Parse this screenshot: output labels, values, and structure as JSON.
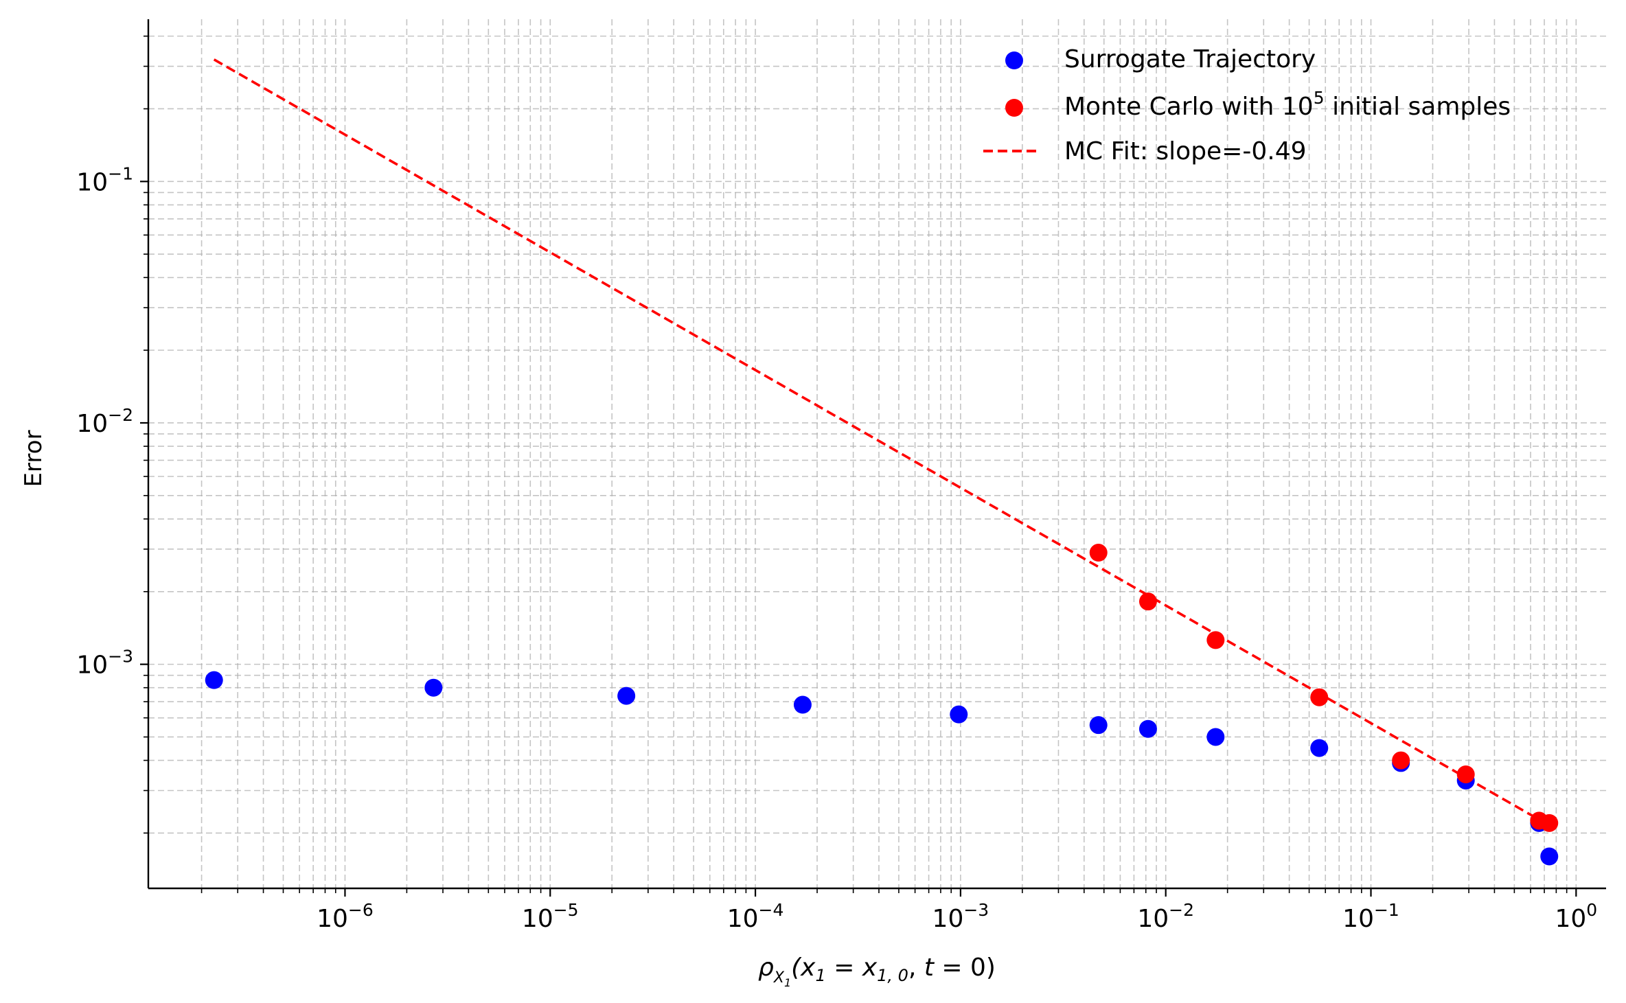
{
  "chart_data": {
    "type": "scatter",
    "title": "",
    "xlabel": "ρ_{X_1}(x_1 = x_{1,0}, t = 0)",
    "ylabel": "Error",
    "xscale": "log",
    "yscale": "log",
    "xlim": [
      1.1e-07,
      1.4
    ],
    "ylim": [
      0.000118,
      0.47
    ],
    "grid": true,
    "legend_position": "top-right",
    "x_major_ticks": [
      {
        "value": 1e-06,
        "base": "10",
        "exp": "−6"
      },
      {
        "value": 1e-05,
        "base": "10",
        "exp": "−5"
      },
      {
        "value": 0.0001,
        "base": "10",
        "exp": "−4"
      },
      {
        "value": 0.001,
        "base": "10",
        "exp": "−3"
      },
      {
        "value": 0.01,
        "base": "10",
        "exp": "−2"
      },
      {
        "value": 0.1,
        "base": "10",
        "exp": "−1"
      },
      {
        "value": 1,
        "base": "10",
        "exp": "0"
      }
    ],
    "y_major_ticks": [
      {
        "value": 0.001,
        "base": "10",
        "exp": "−3"
      },
      {
        "value": 0.01,
        "base": "10",
        "exp": "−2"
      },
      {
        "value": 0.1,
        "base": "10",
        "exp": "−1"
      }
    ],
    "series": [
      {
        "name": "Surrogate Trajectory",
        "kind": "scatter",
        "color": "#0000ff",
        "x": [
          2.3e-07,
          2.7e-06,
          2.35e-05,
          0.00017,
          0.00098,
          0.0047,
          0.0082,
          0.0175,
          0.056,
          0.14,
          0.29,
          0.66,
          0.74
        ],
        "y": [
          0.00086,
          0.0008,
          0.00074,
          0.00068,
          0.00062,
          0.00056,
          0.00054,
          0.0005,
          0.00045,
          0.00039,
          0.00033,
          0.00022,
          0.00016
        ]
      },
      {
        "name": "Monte Carlo with 10⁵ initial samples",
        "kind": "scatter",
        "color": "#ff0000",
        "x": [
          0.0047,
          0.0082,
          0.0175,
          0.056,
          0.14,
          0.29,
          0.66,
          0.74
        ],
        "y": [
          0.0029,
          0.00182,
          0.00126,
          0.00073,
          0.0004,
          0.00035,
          0.000225,
          0.00022
        ]
      },
      {
        "name": "MC Fit: slope=-0.49",
        "kind": "line",
        "style": "dashed",
        "color": "#ff0000",
        "x": [
          2.3e-07,
          0.74
        ],
        "y": [
          0.32,
          0.000215
        ]
      }
    ],
    "legend": {
      "surrogate": "Surrogate Trajectory",
      "mc_prefix": "Monte Carlo with 10",
      "mc_exp": "5",
      "mc_suffix": " initial samples",
      "fit": "MC Fit: slope=-0.49"
    }
  }
}
